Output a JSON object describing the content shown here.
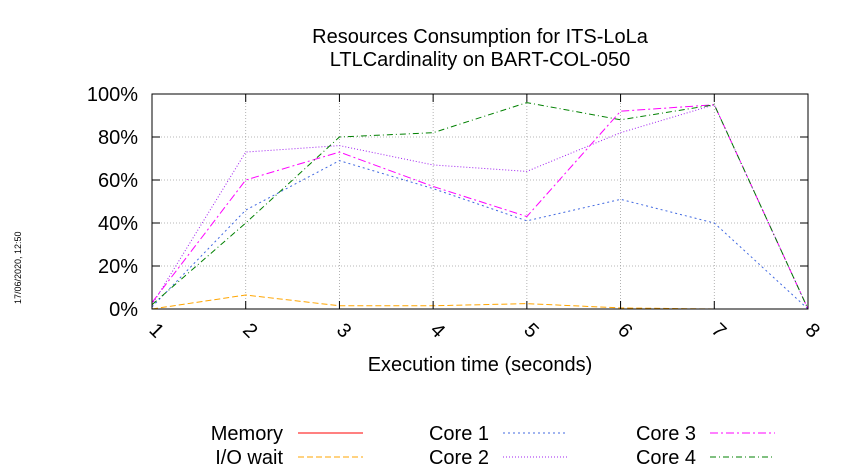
{
  "chart_data": {
    "type": "line",
    "title": "Resources Consumption for ITS-LoLa",
    "subtitle": "LTLCardinality on BART-COL-050",
    "xlabel": "Execution time (seconds)",
    "ylabel": "",
    "x": [
      1,
      2,
      3,
      4,
      5,
      6,
      7,
      8
    ],
    "xlim": [
      1,
      8
    ],
    "ylim": [
      0,
      100
    ],
    "x_ticks": [
      "1",
      "2",
      "3",
      "4",
      "5",
      "6",
      "7",
      "8"
    ],
    "y_ticks": [
      "0%",
      "20%",
      "40%",
      "60%",
      "80%",
      "100%"
    ],
    "grid": true,
    "legend_position": "bottom",
    "series": [
      {
        "name": "Memory",
        "color": "#ff0000",
        "dash": "",
        "values": [
          0,
          0,
          0,
          0,
          0,
          0,
          0,
          0
        ]
      },
      {
        "name": "I/O wait",
        "color": "#ffa500",
        "dash": "6,3",
        "values": [
          0,
          6.5,
          1.5,
          1.5,
          2.5,
          0.5,
          0,
          0
        ]
      },
      {
        "name": "Core 1",
        "color": "#4169e1",
        "dash": "2,3",
        "values": [
          1,
          46,
          69,
          56,
          41,
          51,
          40,
          0
        ]
      },
      {
        "name": "Core 2",
        "color": "#a020f0",
        "dash": "1,2",
        "values": [
          2,
          73,
          76,
          67,
          64,
          82,
          95,
          0
        ]
      },
      {
        "name": "Core 3",
        "color": "#ff00ff",
        "dash": "8,3,2,3",
        "values": [
          3,
          60,
          73,
          57,
          43,
          92,
          95,
          0
        ]
      },
      {
        "name": "Core 4",
        "color": "#008000",
        "dash": "6,3,1,3",
        "values": [
          2,
          40,
          80,
          82,
          96,
          88,
          95,
          0
        ]
      }
    ]
  },
  "timestamp": "17/06/2020, 12:50"
}
